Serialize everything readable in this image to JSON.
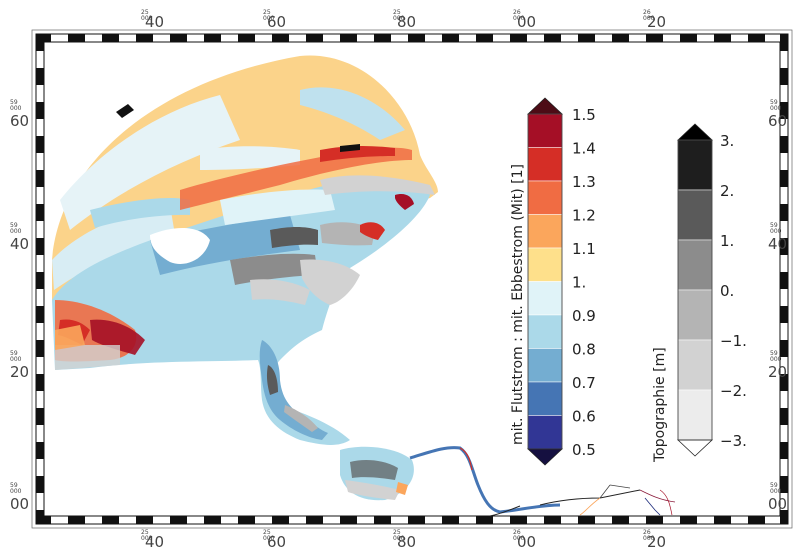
{
  "map": {
    "x_ticks": [
      {
        "prefix": "25",
        "value": "40"
      },
      {
        "prefix": "25",
        "value": "60"
      },
      {
        "prefix": "25",
        "value": "80"
      },
      {
        "prefix": "26",
        "value": "00"
      },
      {
        "prefix": "26",
        "value": "20"
      }
    ],
    "y_ticks": [
      {
        "prefix": "59",
        "value": "60"
      },
      {
        "prefix": "59",
        "value": "40"
      },
      {
        "prefix": "59",
        "value": "20"
      },
      {
        "prefix": "59",
        "value": "00"
      }
    ],
    "tick_suffix": "000"
  },
  "ratio_colorbar": {
    "title": "mit. Flutstrom : mit. Ebbestrom (Mit) [1]",
    "labels": [
      "1.5",
      "1.4",
      "1.3",
      "1.2",
      "1.1",
      "1.",
      "0.9",
      "0.8",
      "0.7",
      "0.6",
      "0.5"
    ],
    "colors": [
      "#a50f26",
      "#d52e26",
      "#f06c43",
      "#fba65c",
      "#fee08b",
      "#e0f3f8",
      "#abd9e9",
      "#74add1",
      "#4575b4",
      "#313695"
    ],
    "over_color": "#4d0c16",
    "under_color": "#151040"
  },
  "topo_colorbar": {
    "title": "Topographie [m]",
    "labels": [
      "3.",
      "2.",
      "1.",
      "0.",
      "−1.",
      "−2.",
      "−3."
    ],
    "colors": [
      "#1e1e1e",
      "#5a5a5a",
      "#8c8c8c",
      "#b4b4b4",
      "#d2d2d2",
      "#ececec"
    ],
    "over_color": "#000000",
    "under_color": "#ffffff"
  }
}
